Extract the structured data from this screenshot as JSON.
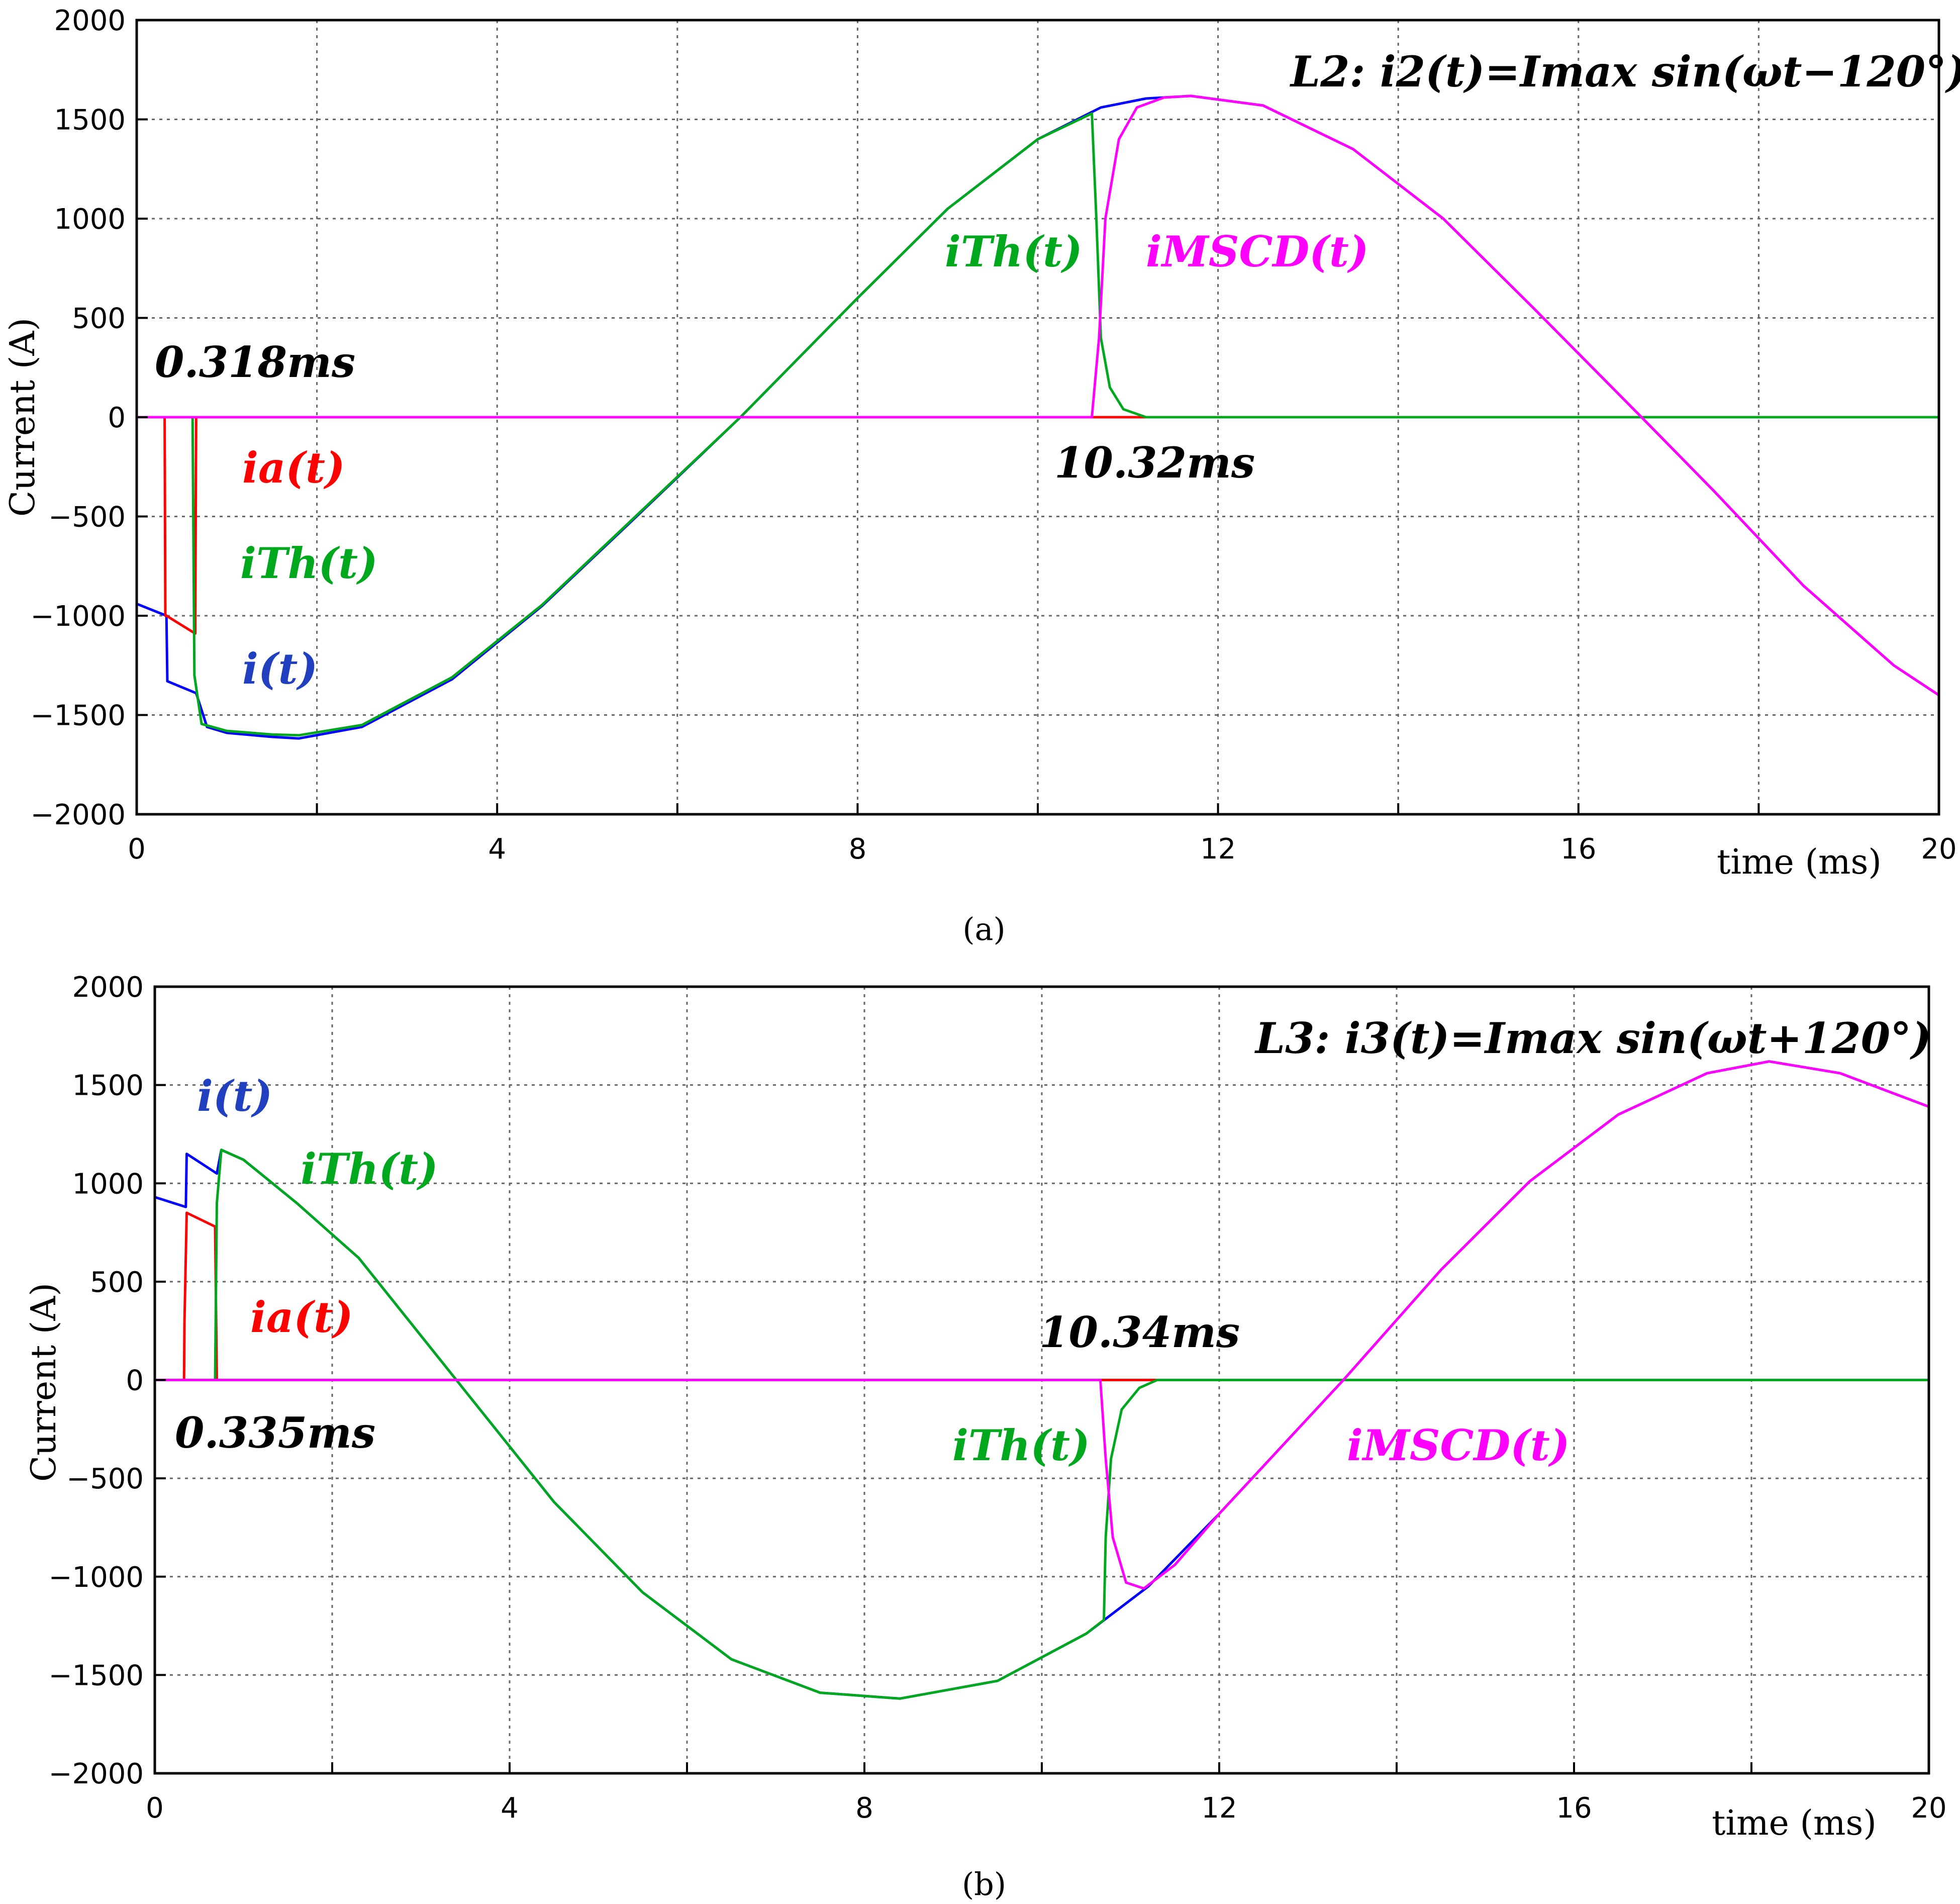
{
  "chart_data": [
    {
      "panel": "a",
      "type": "line",
      "caption": "(a)",
      "ylabel": "Current (A)",
      "xlabel": "time (ms)",
      "xlim": [
        0,
        20
      ],
      "ylim": [
        -2000,
        2000
      ],
      "x_ticks": [
        0,
        4,
        8,
        12,
        16,
        20
      ],
      "y_ticks": [
        2000,
        1500,
        1000,
        500,
        0,
        -500,
        -1000,
        -1500,
        -2000
      ],
      "y_tick_labels": [
        "2000",
        "1500",
        "1000",
        "500",
        "0",
        "−500",
        "−1000",
        "−1500",
        "−2000"
      ],
      "x_grid": [
        0,
        2,
        4,
        6,
        8,
        10,
        12,
        14,
        16,
        18,
        20
      ],
      "annotations": {
        "title": "L2: i2(t)=Imax sin(ωt−120°)",
        "t_a": "0.318ms",
        "t_b": "10.32ms",
        "ia": "ia(t)",
        "ith_1": "iTh(t)",
        "i": "i(t)",
        "ith_2": "iTh(t)",
        "imscd": "iMSCD(t)"
      },
      "series": [
        {
          "name": "i(t)",
          "color": "#0000ff",
          "points": [
            [
              0,
              -940
            ],
            [
              0.33,
              -1000
            ],
            [
              0.34,
              -1330
            ],
            [
              0.66,
              -1390
            ],
            [
              0.78,
              -1560
            ],
            [
              1.0,
              -1590
            ],
            [
              1.5,
              -1610
            ],
            [
              1.8,
              -1618
            ],
            [
              2.5,
              -1560
            ],
            [
              3.5,
              -1320
            ],
            [
              4.5,
              -950
            ],
            [
              5.5,
              -520
            ],
            [
              6.7,
              0
            ],
            [
              8.0,
              600
            ],
            [
              9.0,
              1050
            ],
            [
              10.0,
              1400
            ],
            [
              10.7,
              1560
            ],
            [
              11.2,
              1605
            ],
            [
              11.7,
              1618
            ],
            [
              12.5,
              1570
            ],
            [
              13.5,
              1350
            ],
            [
              14.5,
              1000
            ],
            [
              15.5,
              550
            ],
            [
              16.7,
              0
            ],
            [
              17.5,
              -370
            ],
            [
              18.5,
              -850
            ],
            [
              19.5,
              -1250
            ],
            [
              20,
              -1400
            ]
          ]
        },
        {
          "name": "ia(t)",
          "color": "#ff0000",
          "points": [
            [
              0,
              0
            ],
            [
              0.31,
              0
            ],
            [
              0.318,
              -1000
            ],
            [
              0.33,
              -1000
            ],
            [
              0.65,
              -1090
            ],
            [
              0.66,
              0
            ],
            [
              20,
              0
            ]
          ]
        },
        {
          "name": "iTh(t)",
          "color": "#00a81e",
          "points": [
            [
              0,
              0
            ],
            [
              0.62,
              0
            ],
            [
              0.64,
              -1300
            ],
            [
              0.72,
              -1545
            ],
            [
              1.0,
              -1580
            ],
            [
              1.5,
              -1598
            ],
            [
              1.8,
              -1602
            ],
            [
              2.5,
              -1550
            ],
            [
              3.5,
              -1310
            ],
            [
              4.5,
              -945
            ],
            [
              5.5,
              -515
            ],
            [
              6.7,
              0
            ],
            [
              8.0,
              600
            ],
            [
              9.0,
              1050
            ],
            [
              10.0,
              1400
            ],
            [
              10.6,
              1530
            ],
            [
              10.65,
              1000
            ],
            [
              10.7,
              400
            ],
            [
              10.8,
              150
            ],
            [
              10.95,
              40
            ],
            [
              11.2,
              0
            ],
            [
              20,
              0
            ]
          ]
        },
        {
          "name": "iMSCD(t)",
          "color": "#ff00ff",
          "points": [
            [
              0,
              0
            ],
            [
              10.6,
              0
            ],
            [
              10.68,
              400
            ],
            [
              10.75,
              1000
            ],
            [
              10.9,
              1400
            ],
            [
              11.1,
              1560
            ],
            [
              11.4,
              1610
            ],
            [
              11.7,
              1618
            ],
            [
              12.5,
              1570
            ],
            [
              13.5,
              1350
            ],
            [
              14.5,
              1000
            ],
            [
              15.5,
              550
            ],
            [
              16.7,
              0
            ],
            [
              17.5,
              -370
            ],
            [
              18.5,
              -850
            ],
            [
              19.5,
              -1250
            ],
            [
              20,
              -1400
            ]
          ]
        }
      ]
    },
    {
      "panel": "b",
      "type": "line",
      "caption": "(b)",
      "ylabel": "Current (A)",
      "xlabel": "time (ms)",
      "xlim": [
        0,
        20
      ],
      "ylim": [
        -2000,
        2000
      ],
      "x_ticks": [
        0,
        4,
        8,
        12,
        16,
        20
      ],
      "y_ticks": [
        2000,
        1500,
        1000,
        500,
        0,
        -500,
        -1000,
        -1500,
        -2000
      ],
      "y_tick_labels": [
        "2000",
        "1500",
        "1000",
        "500",
        "0",
        "−500",
        "−1000",
        "−1500",
        "−2000"
      ],
      "x_grid": [
        0,
        2,
        4,
        6,
        8,
        10,
        12,
        14,
        16,
        18,
        20
      ],
      "annotations": {
        "title": "L3: i3(t)=Imax sin(ωt+120°)",
        "t_a": "0.335ms",
        "t_b": "10.34ms",
        "i": "i(t)",
        "ith_1": "iTh(t)",
        "ia": "ia(t)",
        "ith_2": "iTh(t)",
        "imscd": "iMSCD(t)"
      },
      "series": [
        {
          "name": "i(t)",
          "color": "#0000ff",
          "points": [
            [
              0,
              930
            ],
            [
              0.35,
              880
            ],
            [
              0.36,
              1150
            ],
            [
              0.7,
              1050
            ],
            [
              0.75,
              1170
            ],
            [
              1.0,
              1120
            ],
            [
              1.6,
              900
            ],
            [
              2.3,
              620
            ],
            [
              3.4,
              0
            ],
            [
              4.5,
              -620
            ],
            [
              5.5,
              -1080
            ],
            [
              6.5,
              -1420
            ],
            [
              7.5,
              -1590
            ],
            [
              8.4,
              -1620
            ],
            [
              9.5,
              -1530
            ],
            [
              10.5,
              -1290
            ],
            [
              11.2,
              -1050
            ],
            [
              12,
              -680
            ],
            [
              13.4,
              0
            ],
            [
              14.5,
              560
            ],
            [
              15.5,
              1010
            ],
            [
              16.5,
              1350
            ],
            [
              17.5,
              1560
            ],
            [
              18.2,
              1620
            ],
            [
              19,
              1560
            ],
            [
              20,
              1390
            ]
          ]
        },
        {
          "name": "ia(t)",
          "color": "#ff0000",
          "points": [
            [
              0,
              0
            ],
            [
              0.33,
              0
            ],
            [
              0.335,
              300
            ],
            [
              0.36,
              850
            ],
            [
              0.68,
              780
            ],
            [
              0.7,
              0
            ],
            [
              20,
              0
            ]
          ]
        },
        {
          "name": "iTh(t)",
          "color": "#00a81e",
          "points": [
            [
              0,
              0
            ],
            [
              0.68,
              0
            ],
            [
              0.7,
              900
            ],
            [
              0.75,
              1170
            ],
            [
              1.0,
              1120
            ],
            [
              1.6,
              900
            ],
            [
              2.3,
              620
            ],
            [
              3.4,
              0
            ],
            [
              4.5,
              -620
            ],
            [
              5.5,
              -1080
            ],
            [
              6.5,
              -1420
            ],
            [
              7.5,
              -1590
            ],
            [
              8.4,
              -1620
            ],
            [
              9.5,
              -1530
            ],
            [
              10.5,
              -1290
            ],
            [
              10.7,
              -1220
            ],
            [
              10.72,
              -800
            ],
            [
              10.78,
              -400
            ],
            [
              10.9,
              -150
            ],
            [
              11.1,
              -40
            ],
            [
              11.3,
              0
            ],
            [
              20,
              0
            ]
          ]
        },
        {
          "name": "iMSCD(t)",
          "color": "#ff00ff",
          "points": [
            [
              0,
              0
            ],
            [
              10.66,
              0
            ],
            [
              10.72,
              -400
            ],
            [
              10.8,
              -800
            ],
            [
              10.95,
              -1030
            ],
            [
              11.15,
              -1060
            ],
            [
              11.5,
              -940
            ],
            [
              12,
              -680
            ],
            [
              13.4,
              0
            ],
            [
              14.5,
              560
            ],
            [
              15.5,
              1010
            ],
            [
              16.5,
              1350
            ],
            [
              17.5,
              1560
            ],
            [
              18.2,
              1620
            ],
            [
              19,
              1560
            ],
            [
              20,
              1390
            ]
          ]
        }
      ]
    }
  ]
}
